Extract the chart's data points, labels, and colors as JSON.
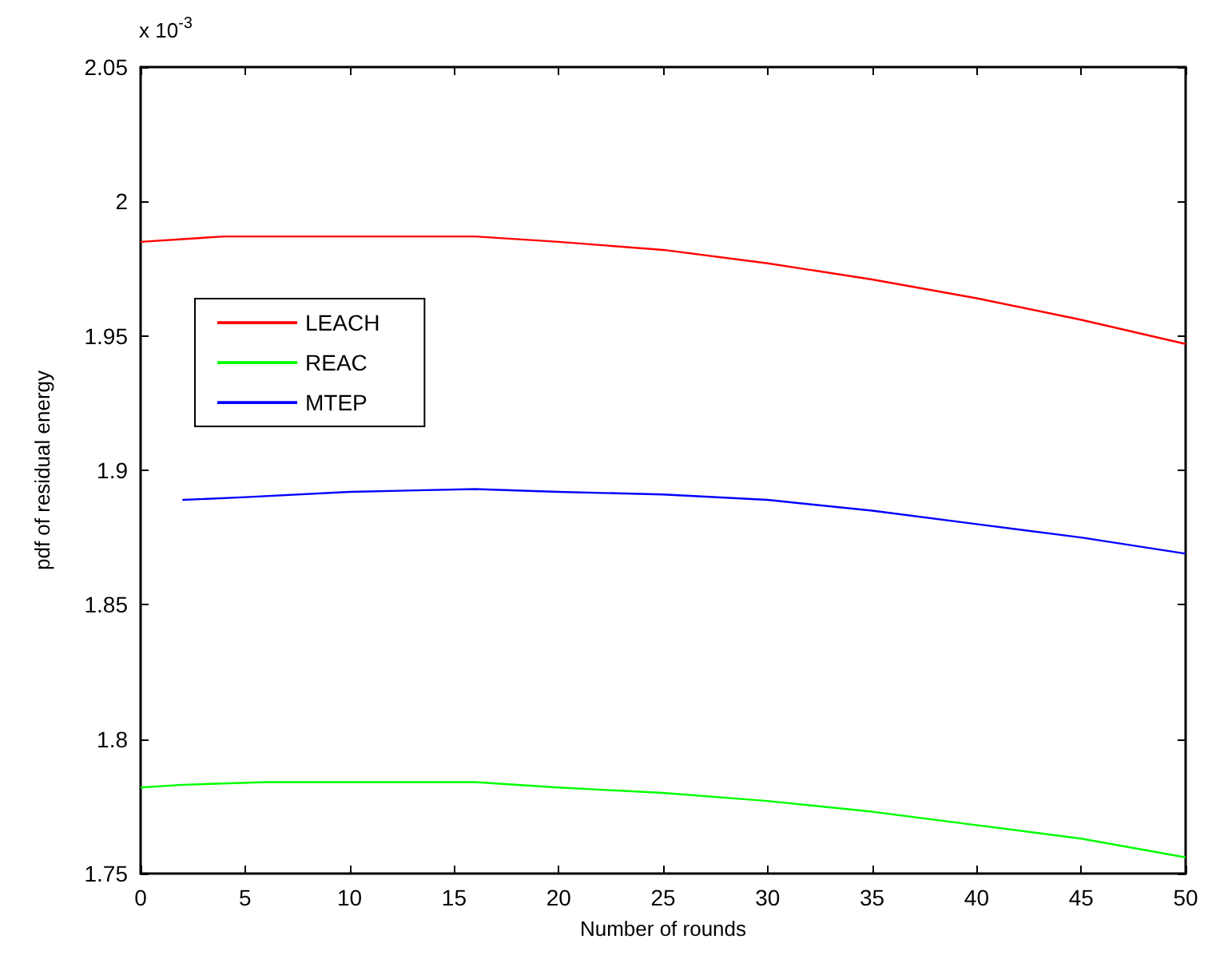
{
  "chart_data": {
    "type": "line",
    "xlabel": "Number of rounds",
    "ylabel": "pdf of residual energy",
    "annotations": [
      "x 10$^{-3}$"
    ],
    "xlim": [
      0,
      50
    ],
    "xticks": [
      0,
      5,
      10,
      15,
      20,
      25,
      30,
      35,
      40,
      45,
      50
    ],
    "ylim": [
      1.75,
      2.05
    ],
    "yticks": [
      1.75,
      1.8,
      1.85,
      1.9,
      1.95,
      2,
      2.05
    ],
    "grid": false,
    "legend": "top left",
    "marker": "none",
    "line_style": "solid",
    "series": [
      {
        "name": "LEACH",
        "color": "#ff0000",
        "x": [
          0,
          2,
          4,
          10,
          16,
          20,
          25,
          30,
          35,
          40,
          45,
          50
        ],
        "values": [
          1.985,
          1.986,
          1.987,
          1.987,
          1.987,
          1.985,
          1.982,
          1.977,
          1.971,
          1.964,
          1.956,
          1.947
        ]
      },
      {
        "name": "REAC",
        "color": "#00ff00",
        "x": [
          0,
          2,
          6,
          10,
          16,
          20,
          25,
          30,
          35,
          40,
          45,
          50
        ],
        "values": [
          1.782,
          1.783,
          1.784,
          1.784,
          1.784,
          1.782,
          1.78,
          1.777,
          1.773,
          1.768,
          1.763,
          1.756
        ]
      },
      {
        "name": "MTEP",
        "color": "#0000ff",
        "x": [
          2,
          5,
          10,
          16,
          20,
          25,
          30,
          35,
          40,
          45,
          50
        ],
        "values": [
          1.889,
          1.89,
          1.892,
          1.893,
          1.892,
          1.891,
          1.889,
          1.885,
          1.88,
          1.875,
          1.869
        ]
      }
    ]
  }
}
